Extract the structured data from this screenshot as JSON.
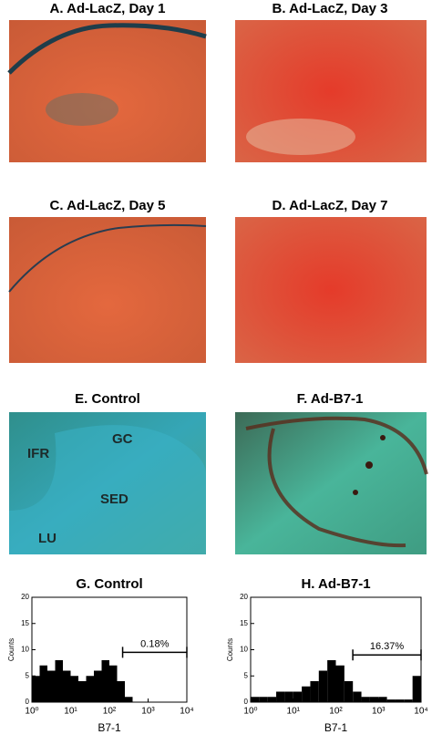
{
  "panels": [
    {
      "title": "A. Ad-LacZ, Day 1"
    },
    {
      "title": "B. Ad-LacZ, Day 3"
    },
    {
      "title": "C. Ad-LacZ, Day 5"
    },
    {
      "title": "D. Ad-LacZ, Day 7"
    },
    {
      "title": "E. Control",
      "labels": [
        "GC",
        "IFR",
        "SED",
        "LU"
      ]
    },
    {
      "title": "F. Ad-B7-1"
    }
  ],
  "chart_data": [
    {
      "type": "histogram",
      "title": "G. Control",
      "xlabel": "B7-1",
      "ylabel": "Counts",
      "log_x": true,
      "color": "#000000",
      "bins": [
        1,
        1.585,
        2.512,
        3.981,
        6.31,
        10,
        15.85,
        25.12,
        39.81,
        63.1,
        100,
        158.5,
        251.2,
        398.1,
        631,
        1000,
        1585,
        2512,
        3981,
        6310,
        10000
      ],
      "values": [
        5,
        7,
        6,
        8,
        6,
        5,
        4,
        5,
        6,
        8,
        7,
        4,
        1,
        0,
        0,
        0,
        0,
        0,
        0,
        0
      ],
      "xlim": [
        1,
        10000
      ],
      "xticks": [
        {
          "value": 1,
          "label": "10⁰"
        },
        {
          "value": 10,
          "label": "10¹"
        },
        {
          "value": 100,
          "label": "10²"
        },
        {
          "value": 1000,
          "label": "10³"
        },
        {
          "value": 10000,
          "label": "10⁴"
        }
      ],
      "ylim": [
        0,
        20
      ],
      "yticks": [
        0,
        5,
        10,
        15,
        20
      ],
      "gate": {
        "range": [
          220,
          10000
        ],
        "y": 9.5,
        "label": "0.18%"
      }
    },
    {
      "type": "histogram",
      "title": "H. Ad-B7-1",
      "xlabel": "B7-1",
      "ylabel": "Counts",
      "log_x": true,
      "color": "#000000",
      "bins": [
        1,
        1.585,
        2.512,
        3.981,
        6.31,
        10,
        15.85,
        25.12,
        39.81,
        63.1,
        100,
        158.5,
        251.2,
        398.1,
        631,
        1000,
        1585,
        2512,
        3981,
        6310,
        10000
      ],
      "values": [
        1,
        1,
        1,
        2,
        2,
        2,
        3,
        4,
        6,
        8,
        7,
        4,
        2,
        1,
        1,
        1,
        0.5,
        0.5,
        0.5,
        5
      ],
      "xlim": [
        1,
        10000
      ],
      "xticks": [
        {
          "value": 1,
          "label": "10⁰"
        },
        {
          "value": 10,
          "label": "10¹"
        },
        {
          "value": 100,
          "label": "10²"
        },
        {
          "value": 1000,
          "label": "10³"
        },
        {
          "value": 10000,
          "label": "10⁴"
        }
      ],
      "ylim": [
        0,
        20
      ],
      "yticks": [
        0,
        5,
        10,
        15,
        20
      ],
      "gate": {
        "range": [
          250,
          10000
        ],
        "y": 9,
        "label": "16.37%"
      }
    }
  ]
}
